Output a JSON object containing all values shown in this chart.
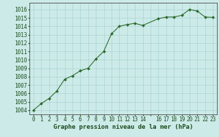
{
  "x": [
    0,
    1,
    2,
    3,
    4,
    5,
    6,
    7,
    8,
    9,
    10,
    11,
    12,
    13,
    14,
    16,
    17,
    18,
    19,
    20,
    21,
    22,
    23
  ],
  "y": [
    1004.0,
    1004.8,
    1005.4,
    1006.3,
    1007.7,
    1008.1,
    1008.7,
    1009.0,
    1010.1,
    1011.0,
    1013.1,
    1014.0,
    1014.2,
    1014.35,
    1014.1,
    1014.9,
    1015.1,
    1015.1,
    1015.3,
    1016.0,
    1015.8,
    1015.1,
    1015.05
  ],
  "line_color": "#2d6a2d",
  "marker": "D",
  "marker_size": 2.0,
  "bg_color": "#cceae8",
  "grid_color": "#a8d4d0",
  "xlabel": "Graphe pression niveau de la mer (hPa)",
  "xlabel_fontsize": 6.5,
  "xlabel_color": "#1a4a1a",
  "tick_color": "#1a4a1a",
  "tick_fontsize": 5.5,
  "ylim": [
    1003.5,
    1016.8
  ],
  "xlim": [
    -0.5,
    23.5
  ],
  "yticks": [
    1004,
    1005,
    1006,
    1007,
    1008,
    1009,
    1010,
    1011,
    1012,
    1013,
    1014,
    1015,
    1016
  ],
  "xtick_labels": [
    "0",
    "1",
    "2",
    "3",
    "4",
    "5",
    "6",
    "7",
    "8",
    "9",
    "10",
    "11",
    "12",
    "13",
    "14",
    "",
    "16",
    "17",
    "18",
    "19",
    "20",
    "21",
    "22",
    "23"
  ],
  "xtick_positions": [
    0,
    1,
    2,
    3,
    4,
    5,
    6,
    7,
    8,
    9,
    10,
    11,
    12,
    13,
    14,
    15,
    16,
    17,
    18,
    19,
    20,
    21,
    22,
    23
  ]
}
